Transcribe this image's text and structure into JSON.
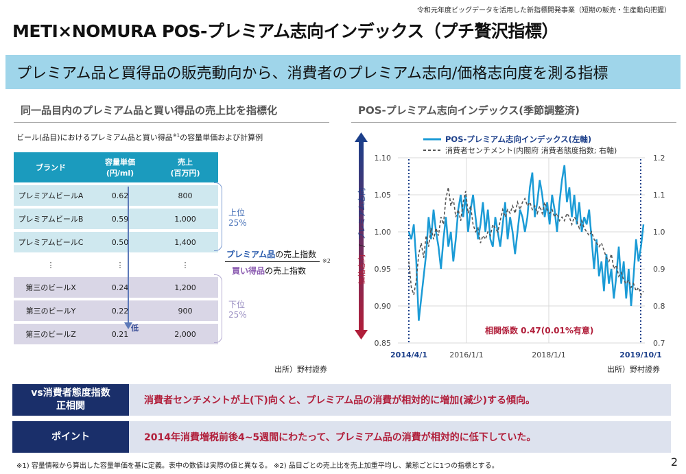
{
  "top_note": "令和元年度ビッグデータを活用した新指標開発事業（短期の販売・生産動向把握）",
  "title": "METI×NOMURA POS-プレミアム志向インデックス（プチ贅沢指標）",
  "subtitle": "プレミアム品と買得品の販売動向から、消費者のプレミアム志向/価格志向度を測る指標",
  "left": {
    "heading": "同一品目内のプレミアム品と買い得品の売上比を指標化",
    "caption_pre": "ビール(品目)におけるプレミアム品と買い得品",
    "caption_mark": "※1",
    "caption_post": "の容量単価および計算例",
    "headers": [
      "ブランド",
      "容量単価\n(円/ml)",
      "売上\n(百万円)"
    ],
    "rows_top": [
      [
        "プレミアムビールA",
        "0.62",
        "800"
      ],
      [
        "プレミアムビールB",
        "0.59",
        "1,000"
      ],
      [
        "プレミアムビールC",
        "0.50",
        "1,400"
      ]
    ],
    "ellipsis": "⋮",
    "rows_bottom": [
      [
        "第三のビールX",
        "0.24",
        "1,200"
      ],
      [
        "第三のビールY",
        "0.22",
        "900"
      ],
      [
        "第三のビールZ",
        "0.21",
        "2,000"
      ]
    ],
    "low_label": "低",
    "top_group_1": "上位",
    "top_group_2": "25%",
    "bottom_group_1": "下位",
    "bottom_group_2": "25%",
    "numerator_em": "プレミアム品",
    "numerator_rest": "の売上指数",
    "denominator_em": "買い得品",
    "denominator_rest": "の売上指数",
    "fraction_mark": "※2",
    "source": "出所）野村證券"
  },
  "right": {
    "heading": "POS-プレミアム志向インデックス(季節調整済)",
    "source": "出所）野村證券"
  },
  "chart_data": {
    "type": "line",
    "legend": [
      "POS-プレミアム志向インデックス(左軸)",
      "消費者センチメント(内閣府 消費者態度指数; 右軸)"
    ],
    "left_axis": {
      "label_top": "プレミアム志向",
      "label_sep": "/",
      "label_bottom": "価格志向",
      "ticks": [
        "1.10",
        "1.05",
        "1.00",
        "0.95",
        "0.90",
        "0.85"
      ],
      "ylim": [
        0.85,
        1.1
      ]
    },
    "right_axis": {
      "ticks": [
        "1.2",
        "1.1",
        "1.0",
        "0.9",
        "0.8",
        "0.7"
      ],
      "ylim": [
        0.7,
        1.2
      ]
    },
    "x_ticks": [
      "2014/4/1",
      "2016/1/1",
      "2018/1/1",
      "2019/10/1"
    ],
    "annotation": "相関係数 0.47(0.01%有意)",
    "series": [
      {
        "name": "POS-プレミアム志向インデックス(左軸)",
        "color": "#1b9bd6",
        "axis": "left",
        "values": [
          1.0,
          0.99,
          1.01,
          0.96,
          0.88,
          0.91,
          0.94,
          0.97,
          1.02,
          0.99,
          1.03,
          1.0,
          0.98,
          0.95,
          0.99,
          1.02,
          0.98,
          1.0,
          0.96,
          0.99,
          1.03,
          1.05,
          1.02,
          1.05,
          1.0,
          1.03,
          1.05,
          1.02,
          0.99,
          1.01,
          1.04,
          1.0,
          1.03,
          0.99,
          0.98,
          1.02,
          1.0,
          0.98,
          1.01,
          1.04,
          0.99,
          1.02,
          1.0,
          0.97,
          1.0,
          1.03,
          1.02,
          1.0,
          1.02,
          1.06,
          1.08,
          1.02,
          1.04,
          1.07,
          1.05,
          1.02,
          1.04,
          1.01,
          1.05,
          1.03,
          1.0,
          1.04,
          1.07,
          1.09,
          1.04,
          1.06,
          1.02,
          1.05,
          1.01,
          1.04,
          1.0,
          1.02,
          1.01,
          1.03,
          0.99,
          0.95,
          0.99,
          0.94,
          0.96,
          0.92,
          0.97,
          0.93,
          0.95,
          0.91,
          0.94,
          0.98,
          0.93,
          0.96,
          0.91,
          0.95,
          0.9,
          0.94,
          0.99,
          0.96,
          0.98,
          1.01
        ]
      },
      {
        "name": "消費者センチメント(内閣府 消費者態度指数; 右軸)",
        "color": "#555555",
        "axis": "right",
        "values": [
          0.92,
          0.85,
          0.83,
          0.87,
          0.94,
          0.97,
          0.93,
          0.99,
          0.96,
          1.01,
          0.98,
          1.01,
          0.99,
          1.04,
          1.02,
          1.09,
          1.12,
          1.07,
          1.09,
          1.04,
          1.06,
          1.03,
          1.08,
          1.11,
          1.05,
          1.07,
          1.02,
          1.0,
          1.01,
          0.97,
          0.99,
          0.98,
          1.0,
          0.99,
          1.02,
          1.01,
          1.0,
          1.03,
          1.06,
          1.04,
          1.06,
          1.05,
          1.07,
          1.05,
          1.08,
          1.06,
          1.08,
          1.09,
          1.07,
          1.08,
          1.06,
          1.07,
          1.05,
          1.07,
          1.05,
          1.08,
          1.06,
          1.05,
          1.06,
          1.04,
          1.05,
          1.03,
          1.04,
          1.03,
          1.05,
          1.04,
          1.02,
          1.04,
          1.03,
          1.01,
          1.03,
          1.01,
          1.0,
          0.99,
          1.0,
          0.98,
          0.97,
          0.96,
          0.97,
          0.95,
          0.93,
          0.92,
          0.94,
          0.9,
          0.91,
          0.88,
          0.89,
          0.87,
          0.86,
          0.87,
          0.85,
          0.86,
          0.84,
          0.85,
          0.83,
          0.84
        ]
      }
    ]
  },
  "rows": [
    {
      "label": "vs消費者態度指数\n正相関",
      "text": "消費者センチメントが上(下)向くと、プレミアム品の消費が相対的に増加(減少)する傾向。"
    },
    {
      "label": "ポイント",
      "text": "2014年消費増税前後4~5週間にわたって、プレミアム品の消費が相対的に低下していた。"
    }
  ],
  "footnote": "※1) 容量情報から算出した容量単価を基に定義。表中の数値は実際の値と異なる。 ※2) 品目ごとの売上比を売上加重平均し、業態ごとに1つの指標とする。",
  "page_number": "2"
}
